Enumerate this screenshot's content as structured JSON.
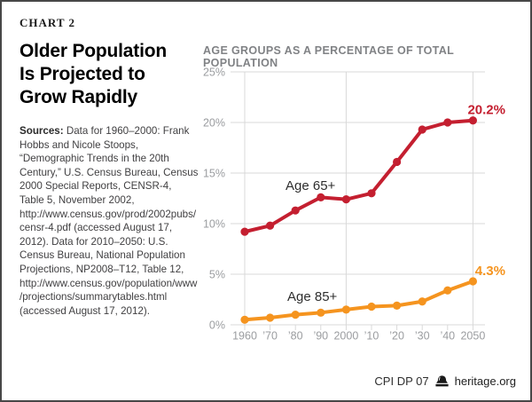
{
  "left": {
    "chart_label": "CHART 2",
    "title_lines": [
      "Older Population",
      "Is Projected to",
      "Grow Rapidly"
    ],
    "sources_label": "Sources:",
    "sources_text": " Data for 1960–2000: Frank Hobbs and Nicole Stoops, “Demographic Trends in the 20th Century,” U.S. Census Bureau, Census 2000 Special Reports, CENSR-4, Table 5, November 2002, http://www.census.gov/prod/2002pubs/censr-4.pdf (accessed August 17, 2012). Data for 2010–2050: U.S. Census Bureau, National Population Projections, NP2008–T12, Table 12, http://www.census.gov/population/www/projections/summarytables.html (accessed August 17, 2012)."
  },
  "footer": {
    "doc_id": "CPI DP 07",
    "site": "heritage.org",
    "logo_icon": "heritage-bell-icon"
  },
  "colors": {
    "red": "#C41F30",
    "orange": "#F5941F",
    "grid": "#D9D9D9",
    "axis_text": "#9B9DA0",
    "chart_title": "#808285"
  },
  "chart_data": {
    "type": "line",
    "title": "AGE GROUPS AS A PERCENTAGE OF TOTAL POPULATION",
    "categories": [
      "1960",
      "’70",
      "’80",
      "’90",
      "2000",
      "’10",
      "’20",
      "’30",
      "’40",
      "2050"
    ],
    "series": [
      {
        "name": "Age 65+",
        "color_key": "red",
        "values": [
          9.2,
          9.8,
          11.3,
          12.6,
          12.4,
          13.0,
          16.1,
          19.3,
          20.0,
          20.2
        ],
        "end_label": "20.2%"
      },
      {
        "name": "Age 85+",
        "color_key": "orange",
        "values": [
          0.5,
          0.7,
          1.0,
          1.2,
          1.5,
          1.8,
          1.9,
          2.3,
          3.4,
          4.3
        ],
        "end_label": "4.3%"
      }
    ],
    "y_ticks": [
      "0%",
      "5%",
      "10%",
      "15%",
      "20%",
      "25%"
    ],
    "y_tick_values": [
      0,
      5,
      10,
      15,
      20,
      25
    ],
    "ylim": [
      0,
      25
    ],
    "x_gridline_indices": [
      0,
      4,
      9
    ],
    "grid": true,
    "legend_position": "inline-labels"
  }
}
